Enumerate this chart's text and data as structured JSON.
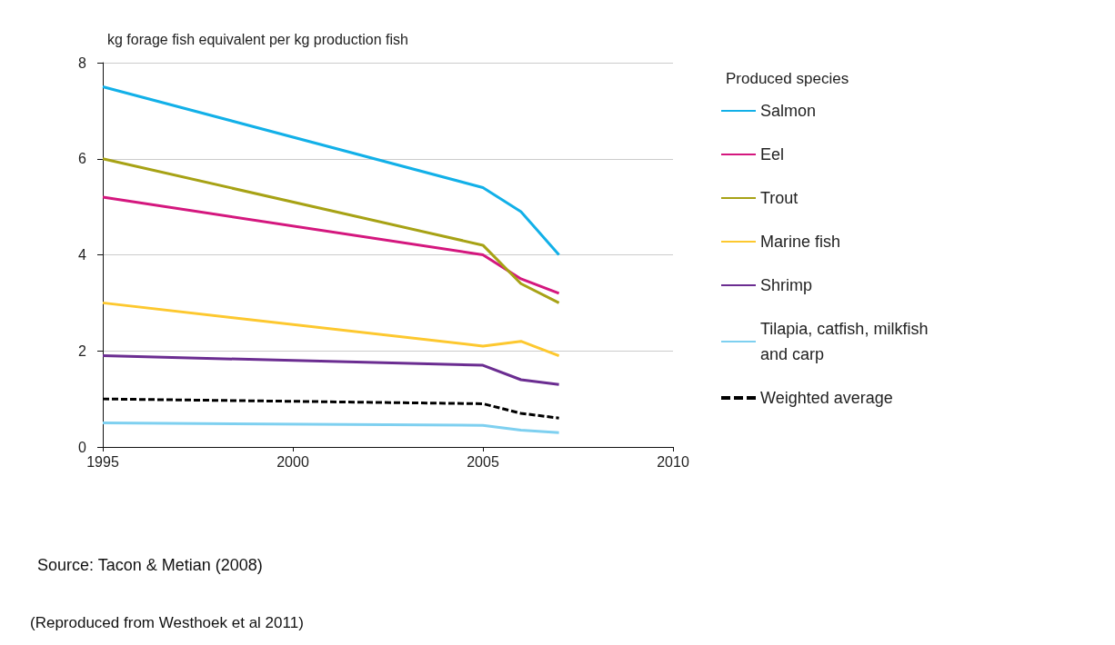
{
  "chart_data": {
    "type": "line",
    "ylabel": "kg forage fish equivalent per kg production fish",
    "legend_title": "Produced species",
    "x": [
      1995,
      2005,
      2006,
      2007
    ],
    "series": [
      {
        "name": "Salmon",
        "color": "#12b0e8",
        "values": [
          7.5,
          5.4,
          4.9,
          4.0
        ]
      },
      {
        "name": "Eel",
        "color": "#d4177e",
        "values": [
          5.2,
          4.0,
          3.5,
          3.2
        ]
      },
      {
        "name": "Trout",
        "color": "#a7a215",
        "values": [
          6.0,
          4.2,
          3.4,
          3.0
        ]
      },
      {
        "name": "Marine fish",
        "color": "#fdc82f",
        "values": [
          3.0,
          2.1,
          2.2,
          1.9
        ]
      },
      {
        "name": "Shrimp",
        "color": "#6b2d91",
        "values": [
          1.9,
          1.7,
          1.4,
          1.3
        ]
      },
      {
        "name": "Tilapia, catfish, milkfish and carp",
        "color": "#7ed0f0",
        "values": [
          0.5,
          0.45,
          0.35,
          0.3
        ]
      },
      {
        "name": "Weighted average",
        "color": "#000000",
        "line_style": "dashed",
        "values": [
          1.0,
          0.9,
          0.7,
          0.6
        ]
      }
    ],
    "xlim": [
      1995,
      2010
    ],
    "xticks": [
      1995,
      2000,
      2005,
      2010
    ],
    "ylim": [
      0,
      8
    ],
    "yticks": [
      0,
      2,
      4,
      6,
      8
    ],
    "grid": "y",
    "legend": "right",
    "marker": "none",
    "annotations": [
      "Source: Tacon & Metian (2008)",
      "(Reproduced from Westhoek et al 2011)"
    ]
  }
}
